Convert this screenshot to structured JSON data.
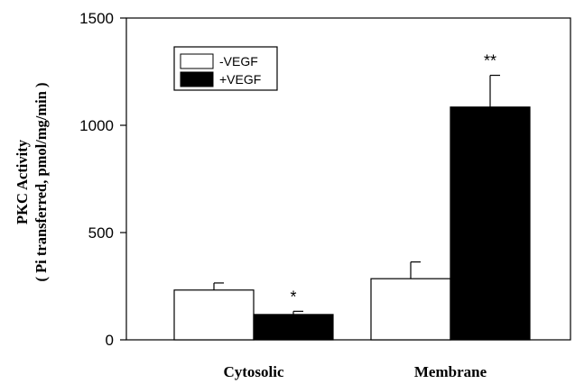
{
  "chart_data": {
    "type": "bar",
    "categories": [
      "Cytosolic",
      "Membrane"
    ],
    "series": [
      {
        "name": "-VEGF",
        "color": "#ffffff",
        "values": [
          232,
          285
        ],
        "errors": [
          33,
          78
        ]
      },
      {
        "name": "+VEGF",
        "color": "#000000",
        "values": [
          118,
          1085
        ],
        "errors": [
          15,
          148
        ]
      }
    ],
    "annotations": [
      {
        "category": "Cytosolic",
        "series": "+VEGF",
        "text": "*"
      },
      {
        "category": "Membrane",
        "series": "+VEGF",
        "text": "**"
      }
    ],
    "ylabel_line1": "PKC Activity",
    "ylabel_line2": "( Pi transferred, pmol/mg/min )",
    "xlabel": "",
    "ylim": [
      0,
      1500
    ],
    "yticks": [
      0,
      500,
      1000,
      1500
    ],
    "ytick_labels": [
      "0",
      "500",
      "1000",
      "1500"
    ],
    "legend_position": "top-left",
    "grid": false
  }
}
